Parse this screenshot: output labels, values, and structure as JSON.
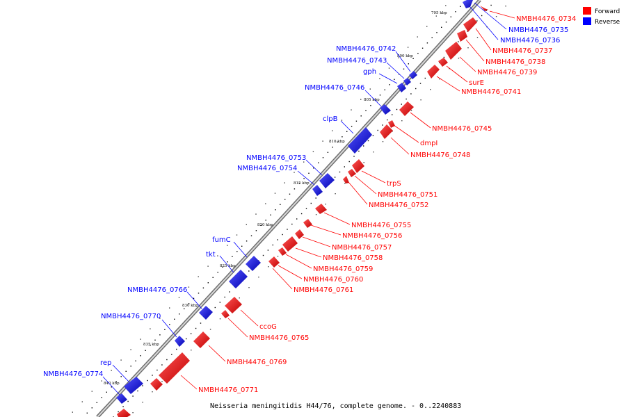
{
  "caption": "Neisseria meningitidis H44/76, complete genome. - 0..2240883",
  "legend": [
    {
      "label": "Forward",
      "color": "#ff0000"
    },
    {
      "label": "Reverse",
      "color": "#0000ff"
    }
  ],
  "colors": {
    "forward": "#ff0000",
    "reverse": "#0000ff",
    "backbone": "#888888"
  },
  "ticks": [
    "795 kbp",
    "800 kbp",
    "805 kbp",
    "810 kbp",
    "815 kbp",
    "820 kbp",
    "825 kbp",
    "830 kbp",
    "835 kbp",
    "840 kbp"
  ],
  "forward_labels": [
    "NMBH4476_0734",
    "NMBH4476_0737",
    "NMBH4476_0738",
    "NMBH4476_0739",
    "surE",
    "NMBH4476_0741",
    "NMBH4476_0745",
    "dmpI",
    "NMBH4476_0748",
    "trpS",
    "NMBH4476_0751",
    "NMBH4476_0752",
    "NMBH4476_0755",
    "NMBH4476_0756",
    "NMBH4476_0757",
    "NMBH4476_0758",
    "NMBH4476_0759",
    "NMBH4476_0760",
    "NMBH4476_0761",
    "ccoG",
    "NMBH4476_0765",
    "NMBH4476_0769",
    "NMBH4476_0771"
  ],
  "reverse_labels": [
    "NMBH4476_0735",
    "NMBH4476_0736",
    "NMBH4476_0742",
    "NMBH4476_0743",
    "gph",
    "NMBH4476_0746",
    "clpB",
    "NMBH4476_0753",
    "NMBH4476_0754",
    "fumC",
    "tkt",
    "NMBH4476_0766",
    "NMBH4476_0770",
    "rep",
    "NMBH4476_0774"
  ]
}
